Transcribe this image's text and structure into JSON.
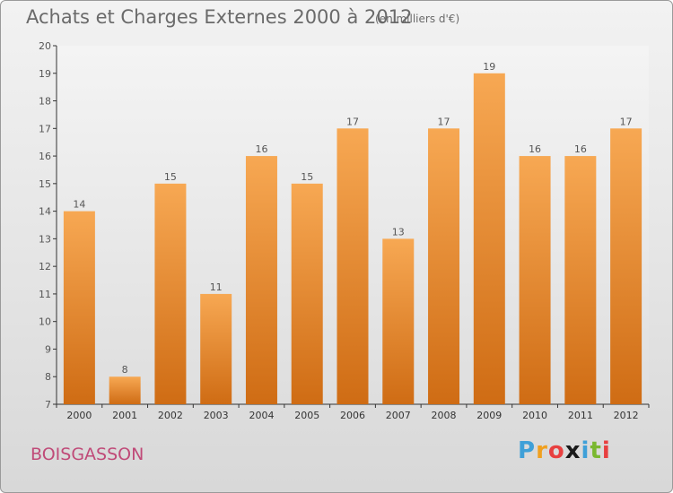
{
  "title": "Achats et Charges Externes 2000 à 2012",
  "subtitle": "(en milliers d'€)",
  "commune": "BOISGASSON",
  "logo": {
    "text": "Proxiti",
    "letters": [
      {
        "ch": "P",
        "color": "#3fa0d8"
      },
      {
        "ch": "r",
        "color": "#f0a020"
      },
      {
        "ch": "o",
        "color": "#e84040"
      },
      {
        "ch": "x",
        "color": "#1a1a1a"
      },
      {
        "ch": "i",
        "color": "#3fa0d8"
      },
      {
        "ch": "t",
        "color": "#7ab830"
      },
      {
        "ch": "i",
        "color": "#e84040"
      }
    ]
  },
  "colors": {
    "bar_top": "#f7a853",
    "bar_bottom": "#cf6c14",
    "text": "#555555"
  },
  "chart_data": {
    "type": "bar",
    "title": "Achats et Charges Externes 2000 à 2012",
    "subtitle": "(en milliers d'€)",
    "categories": [
      "2000",
      "2001",
      "2002",
      "2003",
      "2004",
      "2005",
      "2006",
      "2007",
      "2008",
      "2009",
      "2010",
      "2011",
      "2012"
    ],
    "values": [
      14,
      8,
      15,
      11,
      16,
      15,
      17,
      13,
      17,
      19,
      16,
      16,
      17
    ],
    "ylim": [
      7,
      20
    ],
    "yticks": [
      7,
      8,
      9,
      10,
      11,
      12,
      13,
      14,
      15,
      16,
      17,
      18,
      19,
      20
    ],
    "grid": false,
    "legend": "none"
  }
}
